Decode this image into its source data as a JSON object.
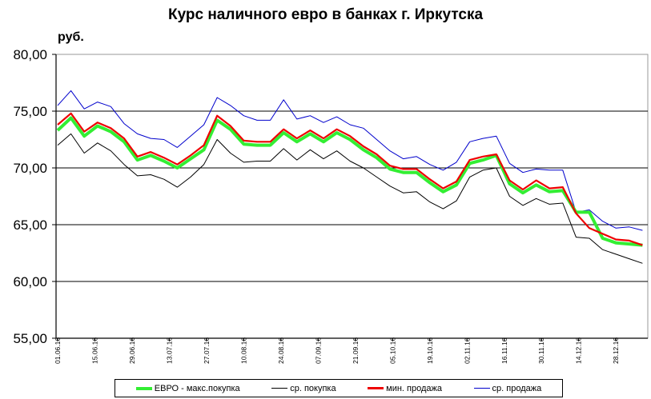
{
  "chart_data": {
    "type": "line",
    "title": "Курс наличного евро в банках г. Иркутска",
    "ylabel": "руб.",
    "ylim": [
      55,
      80
    ],
    "yticks": [
      "55,00",
      "60,00",
      "65,00",
      "70,00",
      "75,00",
      "80,00"
    ],
    "xticks": [
      "01.06.16",
      "15.06.16",
      "29.06.16",
      "13.07.16",
      "27.07.16",
      "10.08.16",
      "24.08.16",
      "07.09.16",
      "21.09.16",
      "05.10.16",
      "19.10.16",
      "02.11.16",
      "16.11.16",
      "30.11.16",
      "14.12.16",
      "28.12.16"
    ],
    "grid": "horizontal",
    "legend_position": "bottom",
    "x": [
      "01.06.16",
      "06.06.16",
      "11.06.16",
      "16.06.16",
      "21.06.16",
      "26.06.16",
      "01.07.16",
      "06.07.16",
      "11.07.16",
      "16.07.16",
      "21.07.16",
      "26.07.16",
      "31.07.16",
      "05.08.16",
      "10.08.16",
      "15.08.16",
      "20.08.16",
      "25.08.16",
      "30.08.16",
      "04.09.16",
      "09.09.16",
      "14.09.16",
      "19.09.16",
      "24.09.16",
      "29.09.16",
      "04.10.16",
      "09.10.16",
      "14.10.16",
      "19.10.16",
      "24.10.16",
      "29.10.16",
      "03.11.16",
      "08.11.16",
      "13.11.16",
      "18.11.16",
      "23.11.16",
      "28.11.16",
      "03.12.16",
      "08.12.16",
      "13.12.16",
      "18.12.16",
      "23.12.16",
      "28.12.16",
      "02.01.17",
      "07.01.17"
    ],
    "series": [
      {
        "name": "ЕВРО - макс.покупка",
        "color": "#33ee33",
        "width": 4,
        "values": [
          73.3,
          74.4,
          72.8,
          73.7,
          73.2,
          72.3,
          70.7,
          71.1,
          70.6,
          70.0,
          70.8,
          71.6,
          74.2,
          73.4,
          72.1,
          72.0,
          72.0,
          73.1,
          72.3,
          73.0,
          72.3,
          73.1,
          72.5,
          71.6,
          70.9,
          69.9,
          69.6,
          69.6,
          68.7,
          67.9,
          68.5,
          70.4,
          70.7,
          71.1,
          68.6,
          67.8,
          68.5,
          67.9,
          68.0,
          66.1,
          66.1,
          63.8,
          63.4,
          63.3,
          63.2
        ]
      },
      {
        "name": "ср. покупка",
        "color": "#000000",
        "width": 1,
        "values": [
          72.0,
          73.0,
          71.3,
          72.2,
          71.5,
          70.3,
          69.3,
          69.4,
          69.0,
          68.3,
          69.2,
          70.3,
          72.5,
          71.3,
          70.5,
          70.6,
          70.6,
          71.7,
          70.7,
          71.6,
          70.8,
          71.5,
          70.6,
          70.0,
          69.2,
          68.4,
          67.8,
          67.9,
          67.0,
          66.4,
          67.1,
          69.2,
          69.8,
          70.0,
          67.5,
          66.7,
          67.3,
          66.8,
          66.9,
          63.9,
          63.8,
          62.8,
          62.4,
          62.0,
          61.6
        ]
      },
      {
        "name": "мин. продажа",
        "color": "#ee0000",
        "width": 2.2,
        "values": [
          73.8,
          74.8,
          73.2,
          74.0,
          73.5,
          72.6,
          71.0,
          71.4,
          70.9,
          70.3,
          71.1,
          72.0,
          74.6,
          73.7,
          72.4,
          72.3,
          72.3,
          73.4,
          72.6,
          73.3,
          72.6,
          73.4,
          72.8,
          71.9,
          71.2,
          70.2,
          69.9,
          69.9,
          69.0,
          68.2,
          68.8,
          70.7,
          71.0,
          71.2,
          68.9,
          68.1,
          68.9,
          68.2,
          68.3,
          66.0,
          64.7,
          64.2,
          63.7,
          63.6,
          63.2
        ]
      },
      {
        "name": "ср. продажа",
        "color": "#0000cc",
        "width": 1,
        "values": [
          75.5,
          76.8,
          75.2,
          75.8,
          75.4,
          73.9,
          73.0,
          72.6,
          72.5,
          71.8,
          72.8,
          73.8,
          76.2,
          75.5,
          74.6,
          74.2,
          74.2,
          76.0,
          74.3,
          74.6,
          74.0,
          74.5,
          73.8,
          73.5,
          72.5,
          71.5,
          70.8,
          71.0,
          70.3,
          69.8,
          70.5,
          72.3,
          72.6,
          72.8,
          70.4,
          69.6,
          69.9,
          69.8,
          69.8,
          66.1,
          66.3,
          65.3,
          64.7,
          64.8,
          64.5
        ]
      }
    ]
  }
}
